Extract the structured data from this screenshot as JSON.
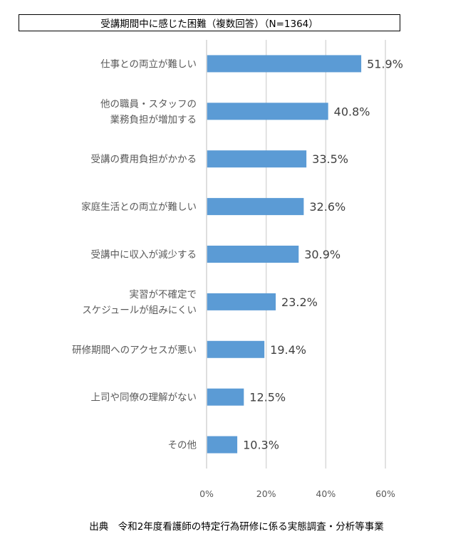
{
  "title": "受講期間中に感じた困難（複数回答）（N=1364）",
  "source": "出典　令和2年度看護師の特定行為研修に係る実態調査・分析等事業",
  "chart_data": {
    "type": "bar",
    "orientation": "horizontal",
    "categories": [
      [
        "仕事との両立が難しい"
      ],
      [
        "他の職員・スタッフの",
        "業務負担が増加する"
      ],
      [
        "受講の費用負担がかかる"
      ],
      [
        "家庭生活との両立が難しい"
      ],
      [
        "受講中に収入が減少する"
      ],
      [
        "実習が不確定で",
        "スケジュールが組みにくい"
      ],
      [
        "研修期間へのアクセスが悪い"
      ],
      [
        "上司や同僚の理解がない"
      ],
      [
        "その他"
      ]
    ],
    "values": [
      51.9,
      40.8,
      33.5,
      32.6,
      30.9,
      23.2,
      19.4,
      12.5,
      10.3
    ],
    "value_labels": [
      "51.9%",
      "40.8%",
      "33.5%",
      "32.6%",
      "30.9%",
      "23.2%",
      "19.4%",
      "12.5%",
      "10.3%"
    ],
    "xlim": [
      0,
      60
    ],
    "x_ticks": [
      0,
      20,
      40,
      60
    ],
    "x_tick_labels": [
      "0%",
      "20%",
      "40%",
      "60%"
    ],
    "grid": true,
    "bar_color": "#5b9bd5"
  }
}
